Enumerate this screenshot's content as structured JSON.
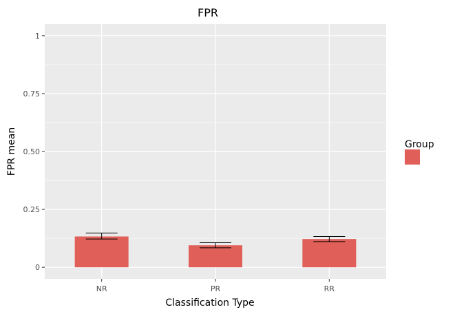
{
  "chart_data": {
    "type": "bar",
    "title": "FPR",
    "xlabel": "Classification Type",
    "ylabel": "FPR mean",
    "categories": [
      "NR",
      "PR",
      "RR"
    ],
    "values": [
      0.133,
      0.095,
      0.122
    ],
    "error_bars": [
      {
        "low": 0.122,
        "high": 0.148
      },
      {
        "low": 0.084,
        "high": 0.106
      },
      {
        "low": 0.111,
        "high": 0.133
      }
    ],
    "ylim": [
      -0.05,
      1.05
    ],
    "yticks": [
      0,
      0.25,
      0.5,
      0.75,
      1
    ],
    "ytick_labels": [
      "0",
      "0.25",
      "0.50",
      "0.75",
      "1"
    ],
    "grid": true,
    "legend": {
      "title": "Group",
      "placement": "right",
      "entries": [
        {
          "label": "",
          "color": "#e06059"
        }
      ]
    },
    "colors": {
      "bar": "#e06059",
      "panel": "#ebebeb",
      "grid_major": "#ffffff",
      "error_bar": "#000000"
    }
  }
}
